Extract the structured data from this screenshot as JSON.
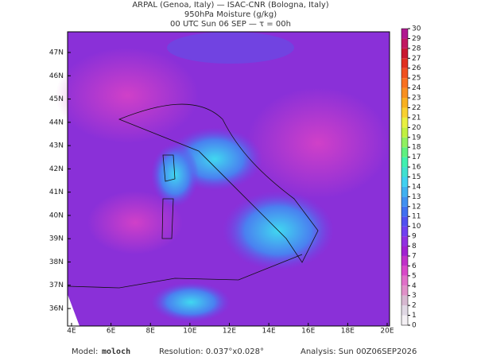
{
  "header": {
    "line1": "ARPAL (Genoa, Italy)  —  ISAC-CNR (Bologna, Italy)",
    "line2": "950hPa Moisture (g/kg)",
    "line3": "00 UTC Sun 06 SEP  —  τ = 00h"
  },
  "map": {
    "lat_labels": [
      "36N",
      "37N",
      "38N",
      "39N",
      "40N",
      "41N",
      "42N",
      "43N",
      "44N",
      "45N",
      "46N",
      "47N"
    ],
    "lon_labels": [
      "4E",
      "6E",
      "8E",
      "10E",
      "12E",
      "14E",
      "16E",
      "18E",
      "20E"
    ],
    "colorbar": {
      "ticks": [
        0,
        1,
        2,
        3,
        4,
        5,
        6,
        7,
        8,
        9,
        10,
        11,
        12,
        13,
        14,
        15,
        16,
        17,
        18,
        19,
        20,
        21,
        22,
        23,
        24,
        25,
        26,
        27,
        28,
        29,
        30
      ],
      "colors": [
        "#f4f0f4",
        "#e0d8e4",
        "#d6b8d0",
        "#e090c8",
        "#e070c8",
        "#d848c8",
        "#c030c8",
        "#a020d0",
        "#9030e0",
        "#7040f0",
        "#5050f0",
        "#4070f0",
        "#4090f0",
        "#40b0f0",
        "#40d0f0",
        "#40e0d0",
        "#40f0b0",
        "#60f080",
        "#90f060",
        "#c0f040",
        "#e8f040",
        "#f8d030",
        "#f8b020",
        "#f89020",
        "#f87020",
        "#f05020",
        "#e03020",
        "#c81830",
        "#c01860",
        "#b01890"
      ]
    }
  },
  "footer": {
    "model_label": "Model:",
    "model": "moloch",
    "resolution": "Resolution: 0.037°x0.028°",
    "analysis": "Analysis: Sun 00Z06SEP2026"
  }
}
